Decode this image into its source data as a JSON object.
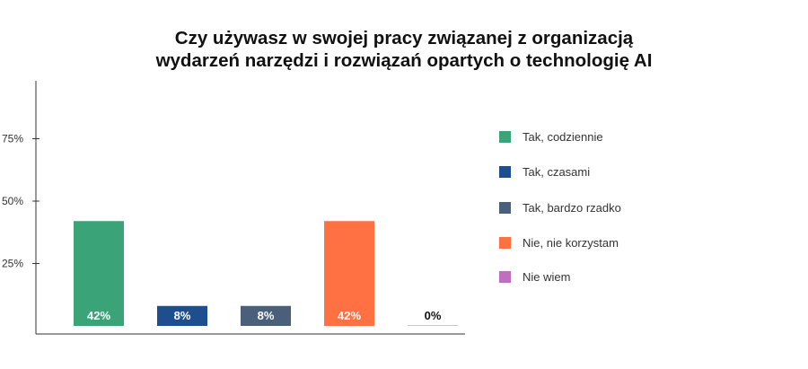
{
  "title": {
    "line1": "Czy używasz w swojej pracy związanej z organizacją",
    "line2": "wydarzeń narzędzi i rozwiązań opartych o technologię AI"
  },
  "chart_data": {
    "type": "bar",
    "title": "Czy używasz w swojej pracy związanej z organizacją wydarzeń narzędzi i rozwiązań opartych o technologię AI",
    "xlabel": "",
    "ylabel": "",
    "ylim": [
      0,
      100
    ],
    "yticks": [
      25,
      50,
      75
    ],
    "ytick_labels": [
      "25%",
      "50%",
      "75%"
    ],
    "grid": false,
    "legend_position": "right",
    "categories": [
      "Tak, codziennie",
      "Tak, czasami",
      "Tak, bardzo rzadko",
      "Nie, nie korzystam",
      "Nie wiem"
    ],
    "values": [
      42,
      8,
      8,
      42,
      0
    ],
    "data_labels": [
      "42%",
      "8%",
      "8%",
      "42%",
      "0%"
    ],
    "colors": [
      "#3aa377",
      "#1f4e8f",
      "#4a5f7a",
      "#ff7043",
      "#c06fc0"
    ],
    "label_colors": [
      "#ffffff",
      "#ffffff",
      "#ffffff",
      "#ffffff",
      "#111111"
    ]
  }
}
